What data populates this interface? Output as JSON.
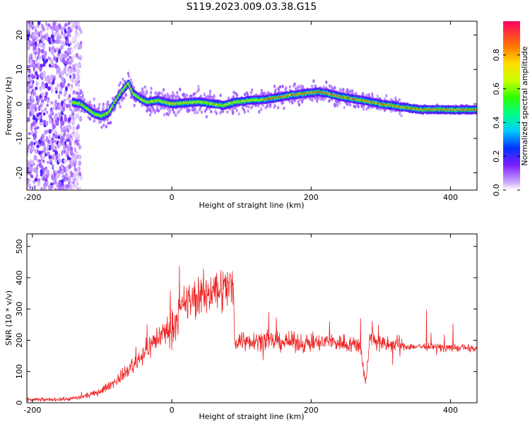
{
  "title": "S119.2023.009.03.38.G15",
  "colors": {
    "snr_line": "#ee2222",
    "axis": "#000000",
    "curve_fill_low": "#d9c8f0"
  },
  "chart_data": [
    {
      "type": "heatmap",
      "xlabel": "Height of straight line (km)",
      "ylabel": "Frequency (Hz)",
      "xlim": [
        -208,
        438
      ],
      "ylim": [
        -25,
        24
      ],
      "xticks": [
        -200,
        0,
        200,
        400
      ],
      "yticks": [
        -20,
        -10,
        0,
        10,
        20
      ],
      "colorbar": {
        "label": "Normalized spectral amplitude",
        "range": [
          0,
          1
        ],
        "ticks": [
          0.0,
          0.2,
          0.4,
          0.6,
          0.8
        ],
        "colormap": "rainbow"
      },
      "ridge": {
        "x": [
          -142,
          -130,
          -120,
          -110,
          -100,
          -90,
          -80,
          -70,
          -62,
          -55,
          -45,
          -35,
          -20,
          0,
          20,
          40,
          60,
          75,
          90,
          110,
          130,
          150,
          170,
          190,
          210,
          225,
          240,
          260,
          280,
          300,
          320,
          340,
          360,
          380,
          400,
          420,
          438
        ],
        "y": [
          0.5,
          0.0,
          -1.5,
          -3.0,
          -3.5,
          -2.5,
          1.0,
          4.0,
          6.0,
          3.0,
          1.5,
          0.5,
          1.0,
          0.0,
          0.3,
          0.6,
          0.0,
          -0.5,
          0.5,
          1.0,
          1.2,
          1.8,
          2.5,
          3.0,
          3.5,
          3.0,
          2.2,
          1.5,
          0.8,
          0.0,
          -0.6,
          -1.2,
          -1.6,
          -1.6,
          -1.7,
          -1.7,
          -1.7
        ]
      }
    },
    {
      "type": "line",
      "xlabel": "Height of straight line (km)",
      "ylabel": "SNR (10 * v/v)",
      "xlim": [
        -208,
        438
      ],
      "ylim": [
        0,
        540
      ],
      "xticks": [
        -200,
        0,
        200,
        400
      ],
      "yticks": [
        0,
        100,
        200,
        300,
        400,
        500
      ],
      "envelope": {
        "x": [
          -208,
          -180,
          -150,
          -130,
          -110,
          -100,
          -80,
          -60,
          -40,
          -20,
          0,
          20,
          40,
          60,
          80,
          88,
          90,
          110,
          130,
          150,
          170,
          190,
          210,
          230,
          250,
          270,
          278,
          285,
          300,
          320,
          340,
          360,
          380,
          400,
          420,
          438
        ],
        "y": [
          10,
          10,
          12,
          18,
          30,
          40,
          70,
          110,
          160,
          210,
          240,
          320,
          340,
          360,
          370,
          375,
          200,
          200,
          200,
          195,
          195,
          190,
          190,
          195,
          190,
          185,
          60,
          220,
          185,
          185,
          180,
          180,
          178,
          176,
          175,
          172
        ]
      }
    }
  ]
}
